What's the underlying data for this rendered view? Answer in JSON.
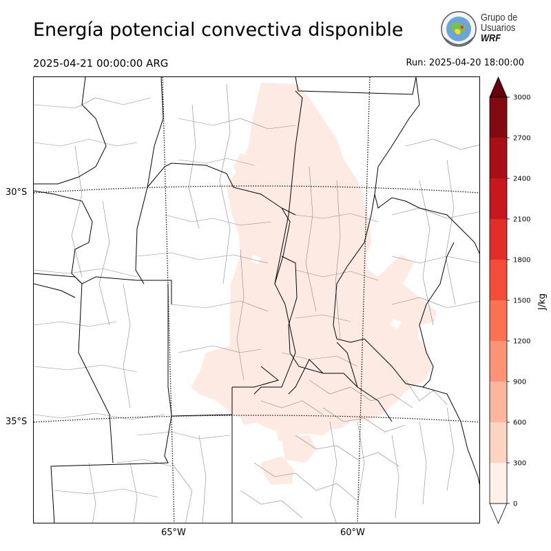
{
  "header": {
    "title": "Energía potencial convectiva disponible",
    "valid_time": "2025-04-21 00:00:00 ARG",
    "run_time": "Run: 2025-04-20 18:00:00"
  },
  "logo": {
    "line1": "Grupo de",
    "line2": "Usuarios",
    "line3": "WRF"
  },
  "map": {
    "lat_labels": [
      "30°S",
      "35°S"
    ],
    "lon_labels": [
      "65°W",
      "60°W"
    ],
    "field_color": "#fdeae3",
    "boundary_color": "#000000",
    "county_color": "#888888"
  },
  "colorbar": {
    "unit": "J/kg",
    "ticks": [
      "0",
      "300",
      "600",
      "900",
      "1200",
      "1500",
      "1800",
      "2100",
      "2400",
      "2700",
      "3000"
    ],
    "colors": [
      "#fff0ea",
      "#fdd4c2",
      "#fcb69b",
      "#fc9474",
      "#fb7252",
      "#f34d39",
      "#e32e27",
      "#c9181d",
      "#aa0f17",
      "#830a11"
    ],
    "over_color": "#67000d",
    "extend": "both"
  }
}
